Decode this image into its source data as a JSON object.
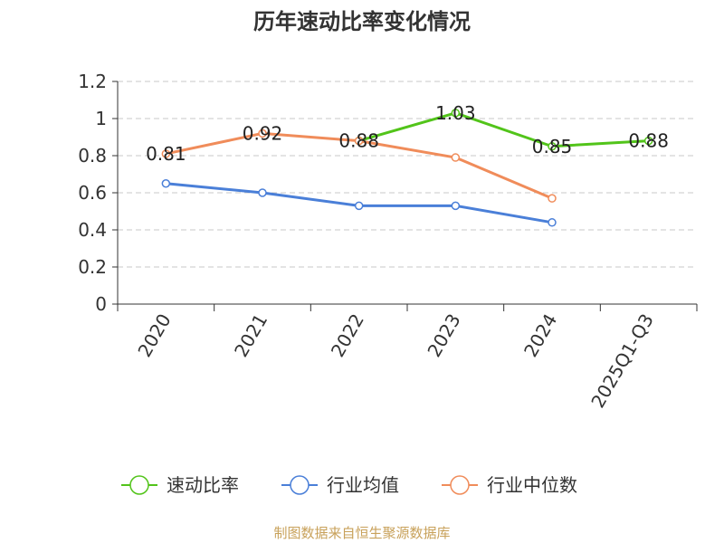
{
  "chart_data": {
    "type": "line",
    "title": "历年速动比率变化情况",
    "categories": [
      "2020",
      "2021",
      "2022",
      "2023",
      "2024",
      "2025Q1-Q3"
    ],
    "ylim": [
      0,
      1.2
    ],
    "yticks": [
      "0",
      "0.2",
      "0.4",
      "0.6",
      "0.8",
      "1",
      "1.2"
    ],
    "grid": true,
    "legend_position": "bottom",
    "series": [
      {
        "name": "速动比率",
        "color": "#52c41a",
        "values": [
          null,
          null,
          0.88,
          1.03,
          0.85,
          0.88
        ],
        "labels": [
          "",
          "",
          "0.88",
          "1.03",
          "0.85",
          "0.88"
        ]
      },
      {
        "name": "行业均值",
        "color": "#4a7fd8",
        "values": [
          0.65,
          0.6,
          0.53,
          0.53,
          0.44,
          null
        ],
        "labels": [
          "",
          "",
          "",
          "",
          "",
          ""
        ]
      },
      {
        "name": "行业中位数",
        "color": "#f08c5a",
        "values": [
          0.81,
          0.92,
          0.88,
          0.79,
          0.57,
          null
        ],
        "labels": [
          "0.81",
          "0.92",
          "",
          "",
          "",
          ""
        ]
      }
    ]
  },
  "source_text": "制图数据来自恒生聚源数据库"
}
